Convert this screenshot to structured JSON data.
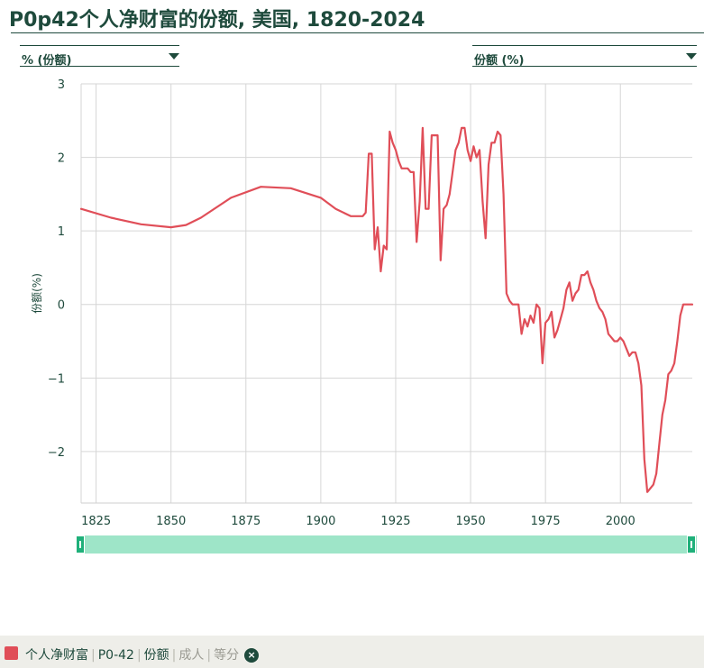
{
  "header": {
    "title": "P0p42个人净财富的份额, 美国, 1820-2024"
  },
  "controls": {
    "left_dropdown": "% (份额)",
    "right_dropdown": "份额 (%)"
  },
  "legend": {
    "color": "#e04e58",
    "series": "个人净财富",
    "code": "P0-42",
    "measure": "份额",
    "population": "成人",
    "split": "等分",
    "close_icon": "×"
  },
  "chart_data": {
    "type": "line",
    "title": "P0p42个人净财富的份额, 美国, 1820-2024",
    "xlabel": "",
    "ylabel": "份额(%)",
    "xlim": [
      1820,
      2024
    ],
    "ylim": [
      -2.7,
      3
    ],
    "x_ticks": [
      1825,
      1850,
      1875,
      1900,
      1925,
      1950,
      1975,
      2000
    ],
    "x_tick_labels": [
      "1825",
      "1850",
      "1875",
      "1900",
      "1925",
      "1950",
      "1975",
      "2000"
    ],
    "y_ticks": [
      3,
      2,
      1,
      0,
      -1,
      -2
    ],
    "y_tick_labels": [
      "3",
      "2",
      "1",
      "0",
      "−1",
      "−2"
    ],
    "grid": true,
    "series": [
      {
        "color": "#e04e58",
        "x": [
          1820,
          1830,
          1840,
          1850,
          1855,
          1860,
          1870,
          1880,
          1890,
          1900,
          1905,
          1910,
          1914,
          1915,
          1916,
          1917,
          1918,
          1919,
          1920,
          1921,
          1922,
          1923,
          1924,
          1925,
          1926,
          1927,
          1928,
          1929,
          1930,
          1931,
          1932,
          1933,
          1934,
          1935,
          1936,
          1937,
          1938,
          1939,
          1940,
          1941,
          1942,
          1943,
          1944,
          1945,
          1946,
          1947,
          1948,
          1949,
          1950,
          1951,
          1952,
          1953,
          1954,
          1955,
          1956,
          1957,
          1958,
          1959,
          1960,
          1961,
          1962,
          1963,
          1964,
          1965,
          1966,
          1967,
          1968,
          1969,
          1970,
          1971,
          1972,
          1973,
          1974,
          1975,
          1976,
          1977,
          1978,
          1979,
          1980,
          1981,
          1982,
          1983,
          1984,
          1985,
          1986,
          1987,
          1988,
          1989,
          1990,
          1991,
          1992,
          1993,
          1994,
          1995,
          1996,
          1997,
          1998,
          1999,
          2000,
          2001,
          2002,
          2003,
          2004,
          2005,
          2006,
          2007,
          2008,
          2009,
          2010,
          2011,
          2012,
          2013,
          2014,
          2015,
          2016,
          2017,
          2018,
          2019,
          2020,
          2021,
          2022,
          2023,
          2024
        ],
        "y": [
          1.3,
          1.18,
          1.09,
          1.05,
          1.08,
          1.18,
          1.45,
          1.6,
          1.58,
          1.45,
          1.3,
          1.2,
          1.2,
          1.25,
          2.05,
          2.05,
          0.75,
          1.05,
          0.45,
          0.8,
          0.75,
          2.35,
          2.2,
          2.1,
          1.95,
          1.85,
          1.85,
          1.85,
          1.8,
          1.8,
          0.85,
          1.4,
          2.4,
          1.3,
          1.3,
          2.3,
          2.3,
          2.3,
          0.6,
          1.3,
          1.35,
          1.5,
          1.8,
          2.1,
          2.2,
          2.4,
          2.4,
          2.1,
          1.95,
          2.15,
          2.0,
          2.1,
          1.4,
          0.9,
          1.9,
          2.2,
          2.2,
          2.35,
          2.3,
          1.5,
          0.15,
          0.05,
          0.0,
          0.0,
          0.0,
          -0.4,
          -0.2,
          -0.3,
          -0.15,
          -0.25,
          0.0,
          -0.05,
          -0.8,
          -0.25,
          -0.2,
          -0.1,
          -0.45,
          -0.35,
          -0.2,
          -0.05,
          0.2,
          0.3,
          0.05,
          0.15,
          0.2,
          0.4,
          0.4,
          0.45,
          0.3,
          0.2,
          0.05,
          -0.05,
          -0.1,
          -0.2,
          -0.4,
          -0.45,
          -0.5,
          -0.5,
          -0.45,
          -0.5,
          -0.6,
          -0.7,
          -0.65,
          -0.65,
          -0.8,
          -1.1,
          -2.1,
          -2.55,
          -2.5,
          -2.45,
          -2.3,
          -1.9,
          -1.5,
          -1.3,
          -0.95,
          -0.9,
          -0.8,
          -0.5,
          -0.15,
          0.0,
          0.0,
          0.0,
          0.0
        ]
      }
    ]
  }
}
